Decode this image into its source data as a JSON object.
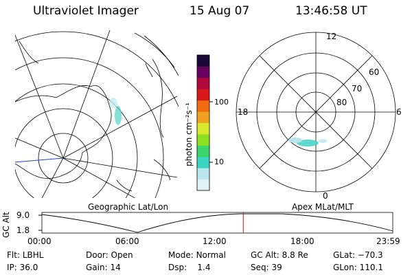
{
  "header": {
    "instrument": "Ultraviolet Imager",
    "date": "15 Aug 07",
    "time": "13:46:58 UT"
  },
  "colorbar": {
    "unit_label": "photon cm⁻²s⁻¹",
    "ticks": [
      "100",
      "10"
    ],
    "colors": [
      "#e0f2f4",
      "#b8e6ec",
      "#3ed4c4",
      "#3ad46a",
      "#8be020",
      "#d8e82c",
      "#f0a020",
      "#f06a10",
      "#d81818",
      "#b00838",
      "#680060",
      "#1c0838"
    ]
  },
  "left_map": {
    "label": "Geographic Lat/Lon"
  },
  "right_map": {
    "label": "Apex MLat/MLT",
    "mlt_labels": {
      "top": "12",
      "bottom": "0",
      "left": "18",
      "right": "6"
    },
    "lat_labels": [
      "60",
      "70",
      "80"
    ]
  },
  "timeline": {
    "axis_label": "GC Alt",
    "y_ticks": [
      "9.0",
      "1.8"
    ],
    "x_ticks": [
      "00:00",
      "06:00",
      "12:00",
      "18:00",
      "23:59"
    ],
    "cursor_time_fraction": 0.574
  },
  "info": {
    "row1": [
      {
        "key": "Flt:",
        "value": "LBHL"
      },
      {
        "key": "Door:",
        "value": "Open"
      },
      {
        "key": "Mode:",
        "value": "Normal"
      },
      {
        "key": "GC Alt:",
        "value": "8.8 Re"
      },
      {
        "key": "GLat:",
        "value": "−70.3"
      }
    ],
    "row2": [
      {
        "key": "IP:",
        "value": "36.0"
      },
      {
        "key": "Gain:",
        "value": "14"
      },
      {
        "key": "Dsp:",
        "value": "1.4"
      },
      {
        "key": "Seq:",
        "value": "39"
      },
      {
        "key": "GLon:",
        "value": "110.1"
      }
    ]
  }
}
